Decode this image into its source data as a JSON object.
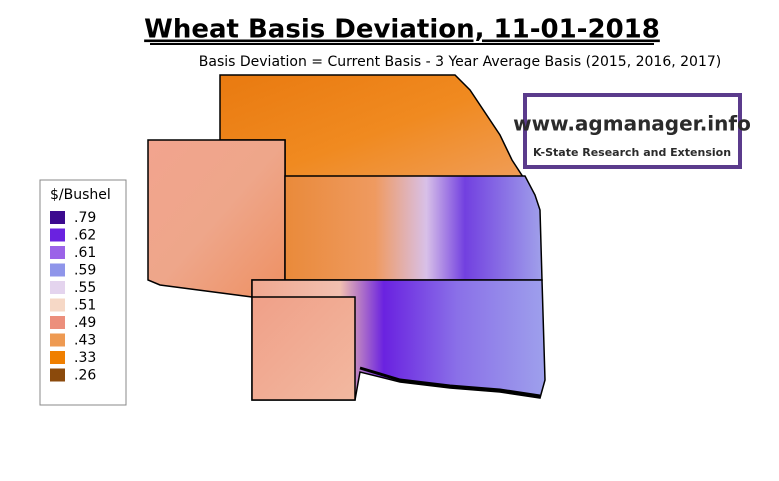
{
  "header": {
    "title": "Wheat Basis Deviation, 11-01-2018",
    "subtitle": "Basis Deviation = Current Basis - 3 Year Average Basis (2015, 2016, 2017)"
  },
  "logo": {
    "url": "www.agmanager.info",
    "org": "K-State Research and Extension"
  },
  "legend": {
    "title": "$/Bushel",
    "items": [
      {
        "label": ".79",
        "color": "#3c0a8f"
      },
      {
        "label": ".62",
        "color": "#6a22e0"
      },
      {
        "label": ".61",
        "color": "#9b63e8"
      },
      {
        "label": ".59",
        "color": "#8f95ea"
      },
      {
        "label": ".55",
        "color": "#e4d4ee"
      },
      {
        "label": ".51",
        "color": "#f6d8c6"
      },
      {
        "label": ".49",
        "color": "#ec8f7c"
      },
      {
        "label": ".43",
        "color": "#ee9a52"
      },
      {
        "label": ".33",
        "color": "#f07f00"
      },
      {
        "label": ".26",
        "color": "#8b4a0c"
      }
    ]
  }
}
